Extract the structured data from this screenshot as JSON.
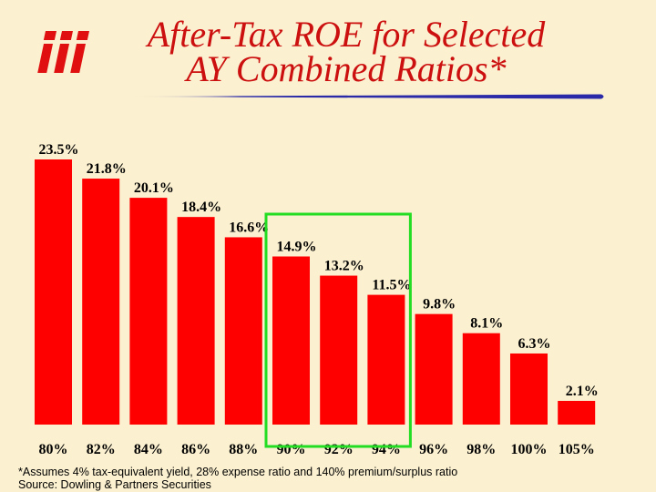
{
  "title": {
    "line1": "After-Tax ROE for Selected",
    "line2": "AY Combined Ratios*"
  },
  "logo": {
    "icon": "iii-logo-icon"
  },
  "colors": {
    "bar": "#ff0000",
    "highlight_box": "#22dd22",
    "title": "#cc1010",
    "rule": "#2a2aa8",
    "background": "#fbf0cf"
  },
  "chart_data": {
    "type": "bar",
    "title": "After-Tax ROE for Selected AY Combined Ratios*",
    "xlabel": "",
    "ylabel": "",
    "categories": [
      "80%",
      "82%",
      "84%",
      "86%",
      "88%",
      "90%",
      "92%",
      "94%",
      "96%",
      "98%",
      "100%",
      "105%"
    ],
    "values": [
      23.5,
      21.8,
      20.1,
      18.4,
      16.6,
      14.9,
      13.2,
      11.5,
      9.8,
      8.1,
      6.3,
      2.1
    ],
    "value_labels": [
      "23.5%",
      "21.8%",
      "20.1%",
      "18.4%",
      "16.6%",
      "14.9%",
      "13.2%",
      "11.5%",
      "9.8%",
      "8.1%",
      "6.3%",
      "2.1%"
    ],
    "ylim": [
      0,
      23.5
    ],
    "grid": false,
    "highlight": {
      "from_category": "90%",
      "to_category": "94%"
    }
  },
  "footnotes": {
    "assumption": "*Assumes 4% tax-equivalent yield, 28% expense ratio and 140% premium/surplus ratio",
    "source": "Source:  Dowling & Partners Securities"
  }
}
